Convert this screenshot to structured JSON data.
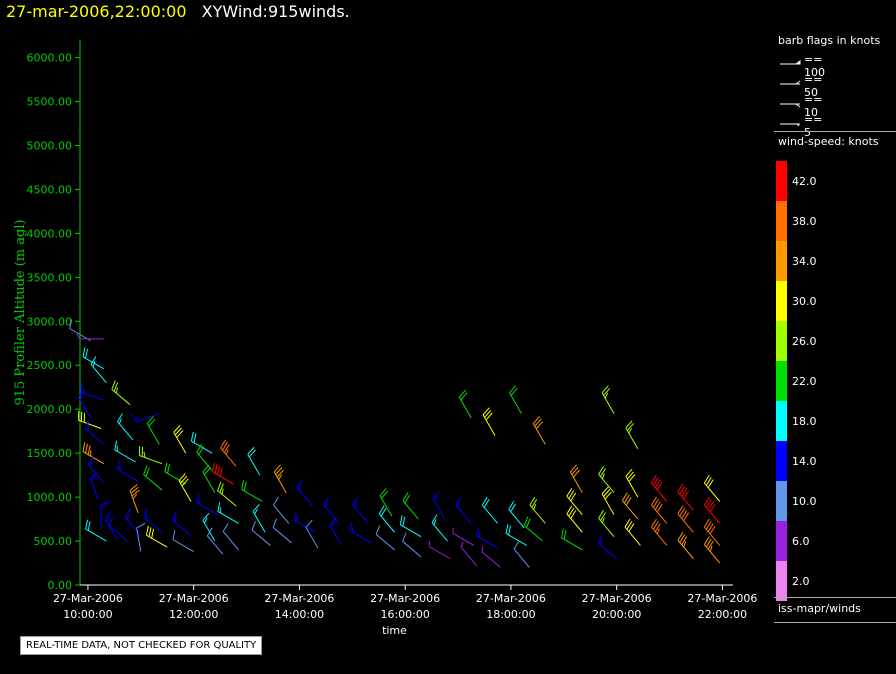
{
  "header": {
    "date": "27-mar-2006,22:00:00",
    "title": "XYWind:915winds."
  },
  "chart_data": {
    "type": "scatter",
    "ylabel": "915 Profiler Altitude (m agl)",
    "xlabel": "time",
    "ylim": [
      0,
      6200
    ],
    "xlim_hours": [
      9.85,
      22.2
    ],
    "y_ticks": [
      "0.00",
      "500.00",
      "1000.00",
      "1500.00",
      "2000.00",
      "2500.00",
      "3000.00",
      "3500.00",
      "4000.00",
      "4500.00",
      "5000.00",
      "5500.00",
      "6000.00"
    ],
    "x_ticks": [
      {
        "date": "27-Mar-2006",
        "time": "10:00:00"
      },
      {
        "date": "27-Mar-2006",
        "time": "12:00:00"
      },
      {
        "date": "27-Mar-2006",
        "time": "14:00:00"
      },
      {
        "date": "27-Mar-2006",
        "time": "16:00:00"
      },
      {
        "date": "27-Mar-2006",
        "time": "18:00:00"
      },
      {
        "date": "27-Mar-2006",
        "time": "20:00:00"
      },
      {
        "date": "27-Mar-2006",
        "time": "22:00:00"
      }
    ],
    "barbs": [
      {
        "t": 10.05,
        "alt": 2780,
        "dir": 300,
        "spd": 8
      },
      {
        "t": 10.3,
        "alt": 2800,
        "dir": 270,
        "spd": 6
      },
      {
        "t": 10.3,
        "alt": 2460,
        "dir": 300,
        "spd": 18
      },
      {
        "t": 10.35,
        "alt": 2300,
        "dir": 320,
        "spd": 16
      },
      {
        "t": 10.3,
        "alt": 2100,
        "dir": 290,
        "spd": 15
      },
      {
        "t": 10.05,
        "alt": 1900,
        "dir": 330,
        "spd": 15
      },
      {
        "t": 10.25,
        "alt": 1780,
        "dir": 290,
        "spd": 30
      },
      {
        "t": 10.3,
        "alt": 1600,
        "dir": 310,
        "spd": 14
      },
      {
        "t": 10.3,
        "alt": 1380,
        "dir": 300,
        "spd": 34
      },
      {
        "t": 10.3,
        "alt": 1160,
        "dir": 320,
        "spd": 14
      },
      {
        "t": 10.2,
        "alt": 960,
        "dir": 340,
        "spd": 14
      },
      {
        "t": 10.25,
        "alt": 640,
        "dir": 0,
        "spd": 15
      },
      {
        "t": 10.35,
        "alt": 500,
        "dir": 300,
        "spd": 18
      },
      {
        "t": 10.55,
        "alt": 520,
        "dir": 330,
        "spd": 15
      },
      {
        "t": 10.75,
        "alt": 500,
        "dir": 310,
        "spd": 12
      },
      {
        "t": 10.8,
        "alt": 2050,
        "dir": 310,
        "spd": 27
      },
      {
        "t": 10.85,
        "alt": 1650,
        "dir": 320,
        "spd": 16
      },
      {
        "t": 10.9,
        "alt": 1400,
        "dir": 300,
        "spd": 16
      },
      {
        "t": 10.95,
        "alt": 1180,
        "dir": 300,
        "spd": 14
      },
      {
        "t": 10.95,
        "alt": 820,
        "dir": 340,
        "spd": 34
      },
      {
        "t": 11.0,
        "alt": 560,
        "dir": 320,
        "spd": 14
      },
      {
        "t": 11.0,
        "alt": 380,
        "dir": 350,
        "spd": 8
      },
      {
        "t": 11.35,
        "alt": 1950,
        "dir": 250,
        "spd": 14
      },
      {
        "t": 11.35,
        "alt": 1600,
        "dir": 330,
        "spd": 20
      },
      {
        "t": 11.4,
        "alt": 1380,
        "dir": 290,
        "spd": 26
      },
      {
        "t": 11.4,
        "alt": 1080,
        "dir": 310,
        "spd": 20
      },
      {
        "t": 11.4,
        "alt": 600,
        "dir": 310,
        "spd": 14
      },
      {
        "t": 11.5,
        "alt": 430,
        "dir": 300,
        "spd": 30
      },
      {
        "t": 11.85,
        "alt": 1500,
        "dir": 330,
        "spd": 30
      },
      {
        "t": 11.85,
        "alt": 1150,
        "dir": 300,
        "spd": 22
      },
      {
        "t": 11.95,
        "alt": 950,
        "dir": 330,
        "spd": 30
      },
      {
        "t": 11.95,
        "alt": 560,
        "dir": 310,
        "spd": 14
      },
      {
        "t": 12.0,
        "alt": 380,
        "dir": 300,
        "spd": 8
      },
      {
        "t": 12.35,
        "alt": 1500,
        "dir": 300,
        "spd": 18
      },
      {
        "t": 12.35,
        "alt": 1300,
        "dir": 320,
        "spd": 20
      },
      {
        "t": 12.4,
        "alt": 1050,
        "dir": 330,
        "spd": 22
      },
      {
        "t": 12.45,
        "alt": 800,
        "dir": 300,
        "spd": 14
      },
      {
        "t": 12.4,
        "alt": 500,
        "dir": 330,
        "spd": 16
      },
      {
        "t": 12.55,
        "alt": 350,
        "dir": 320,
        "spd": 8
      },
      {
        "t": 12.8,
        "alt": 1350,
        "dir": 320,
        "spd": 36
      },
      {
        "t": 12.75,
        "alt": 1150,
        "dir": 300,
        "spd": 42
      },
      {
        "t": 12.8,
        "alt": 900,
        "dir": 310,
        "spd": 26
      },
      {
        "t": 12.85,
        "alt": 700,
        "dir": 300,
        "spd": 16
      },
      {
        "t": 12.85,
        "alt": 400,
        "dir": 320,
        "spd": 8
      },
      {
        "t": 13.25,
        "alt": 1250,
        "dir": 330,
        "spd": 18
      },
      {
        "t": 13.3,
        "alt": 950,
        "dir": 300,
        "spd": 22
      },
      {
        "t": 13.35,
        "alt": 600,
        "dir": 330,
        "spd": 16
      },
      {
        "t": 13.45,
        "alt": 450,
        "dir": 310,
        "spd": 8
      },
      {
        "t": 13.75,
        "alt": 1050,
        "dir": 330,
        "spd": 34
      },
      {
        "t": 13.8,
        "alt": 700,
        "dir": 320,
        "spd": 8
      },
      {
        "t": 13.85,
        "alt": 480,
        "dir": 310,
        "spd": 8
      },
      {
        "t": 14.25,
        "alt": 900,
        "dir": 320,
        "spd": 14
      },
      {
        "t": 14.3,
        "alt": 600,
        "dir": 300,
        "spd": 14
      },
      {
        "t": 14.35,
        "alt": 420,
        "dir": 330,
        "spd": 8
      },
      {
        "t": 14.75,
        "alt": 700,
        "dir": 320,
        "spd": 14
      },
      {
        "t": 14.8,
        "alt": 450,
        "dir": 330,
        "spd": 14
      },
      {
        "t": 15.3,
        "alt": 700,
        "dir": 320,
        "spd": 14
      },
      {
        "t": 15.35,
        "alt": 480,
        "dir": 300,
        "spd": 14
      },
      {
        "t": 15.75,
        "alt": 780,
        "dir": 330,
        "spd": 20
      },
      {
        "t": 15.8,
        "alt": 600,
        "dir": 320,
        "spd": 18
      },
      {
        "t": 15.8,
        "alt": 400,
        "dir": 310,
        "spd": 8
      },
      {
        "t": 16.25,
        "alt": 750,
        "dir": 320,
        "spd": 22
      },
      {
        "t": 16.3,
        "alt": 550,
        "dir": 300,
        "spd": 18
      },
      {
        "t": 16.3,
        "alt": 320,
        "dir": 310,
        "spd": 8
      },
      {
        "t": 16.75,
        "alt": 750,
        "dir": 330,
        "spd": 14
      },
      {
        "t": 16.8,
        "alt": 500,
        "dir": 320,
        "spd": 16
      },
      {
        "t": 16.85,
        "alt": 300,
        "dir": 300,
        "spd": 6
      },
      {
        "t": 17.25,
        "alt": 1900,
        "dir": 330,
        "spd": 22
      },
      {
        "t": 17.25,
        "alt": 700,
        "dir": 320,
        "spd": 14
      },
      {
        "t": 17.3,
        "alt": 450,
        "dir": 300,
        "spd": 6
      },
      {
        "t": 17.35,
        "alt": 220,
        "dir": 320,
        "spd": 6
      },
      {
        "t": 17.7,
        "alt": 1700,
        "dir": 330,
        "spd": 30
      },
      {
        "t": 17.75,
        "alt": 700,
        "dir": 320,
        "spd": 18
      },
      {
        "t": 17.75,
        "alt": 420,
        "dir": 300,
        "spd": 14
      },
      {
        "t": 17.8,
        "alt": 200,
        "dir": 310,
        "spd": 6
      },
      {
        "t": 18.2,
        "alt": 1950,
        "dir": 330,
        "spd": 22
      },
      {
        "t": 18.25,
        "alt": 650,
        "dir": 320,
        "spd": 18
      },
      {
        "t": 18.3,
        "alt": 450,
        "dir": 300,
        "spd": 18
      },
      {
        "t": 18.35,
        "alt": 200,
        "dir": 320,
        "spd": 8
      },
      {
        "t": 18.65,
        "alt": 1600,
        "dir": 330,
        "spd": 32
      },
      {
        "t": 18.65,
        "alt": 700,
        "dir": 320,
        "spd": 24
      },
      {
        "t": 18.6,
        "alt": 500,
        "dir": 310,
        "spd": 20
      },
      {
        "t": 19.35,
        "alt": 1050,
        "dir": 330,
        "spd": 32
      },
      {
        "t": 19.35,
        "alt": 800,
        "dir": 320,
        "spd": 30
      },
      {
        "t": 19.35,
        "alt": 600,
        "dir": 320,
        "spd": 28
      },
      {
        "t": 19.35,
        "alt": 400,
        "dir": 300,
        "spd": 22
      },
      {
        "t": 19.95,
        "alt": 1950,
        "dir": 330,
        "spd": 26
      },
      {
        "t": 19.95,
        "alt": 1050,
        "dir": 320,
        "spd": 24
      },
      {
        "t": 19.95,
        "alt": 800,
        "dir": 330,
        "spd": 28
      },
      {
        "t": 19.95,
        "alt": 550,
        "dir": 320,
        "spd": 26
      },
      {
        "t": 20.0,
        "alt": 300,
        "dir": 310,
        "spd": 14
      },
      {
        "t": 20.4,
        "alt": 1550,
        "dir": 330,
        "spd": 26
      },
      {
        "t": 20.4,
        "alt": 1000,
        "dir": 330,
        "spd": 30
      },
      {
        "t": 20.4,
        "alt": 750,
        "dir": 320,
        "spd": 32
      },
      {
        "t": 20.45,
        "alt": 450,
        "dir": 320,
        "spd": 30
      },
      {
        "t": 20.95,
        "alt": 950,
        "dir": 320,
        "spd": 40
      },
      {
        "t": 20.95,
        "alt": 700,
        "dir": 320,
        "spd": 38
      },
      {
        "t": 20.95,
        "alt": 450,
        "dir": 320,
        "spd": 36
      },
      {
        "t": 21.45,
        "alt": 850,
        "dir": 320,
        "spd": 40
      },
      {
        "t": 21.45,
        "alt": 600,
        "dir": 320,
        "spd": 38
      },
      {
        "t": 21.45,
        "alt": 300,
        "dir": 320,
        "spd": 34
      },
      {
        "t": 21.95,
        "alt": 950,
        "dir": 320,
        "spd": 30
      },
      {
        "t": 21.95,
        "alt": 700,
        "dir": 320,
        "spd": 40
      },
      {
        "t": 21.95,
        "alt": 450,
        "dir": 320,
        "spd": 38
      },
      {
        "t": 21.95,
        "alt": 250,
        "dir": 320,
        "spd": 34
      }
    ]
  },
  "legend": {
    "barb_title": "barb flags in knots",
    "barb_items": [
      {
        "label": "== 100",
        "value": 100
      },
      {
        "label": "== 50",
        "value": 50
      },
      {
        "label": "== 10",
        "value": 10
      },
      {
        "label": "== 5",
        "value": 5
      }
    ],
    "speed_title": "wind-speed: knots",
    "speed_scale": [
      {
        "label": "42.0",
        "color": "#ff0000"
      },
      {
        "label": "38.0",
        "color": "#ff7000"
      },
      {
        "label": "34.0",
        "color": "#ff9a00"
      },
      {
        "label": "30.0",
        "color": "#ffff00"
      },
      {
        "label": "26.0",
        "color": "#a0ff00"
      },
      {
        "label": "22.0",
        "color": "#00e000"
      },
      {
        "label": "18.0",
        "color": "#00ffff"
      },
      {
        "label": "14.0",
        "color": "#0000ff"
      },
      {
        "label": "10.0",
        "color": "#6495ed"
      },
      {
        "label": "6.0",
        "color": "#9a20e0"
      },
      {
        "label": "2.0",
        "color": "#ee82ee"
      }
    ],
    "source": "iss-mapr/winds"
  },
  "footer": {
    "disclaimer": "REAL-TIME DATA, NOT CHECKED FOR QUALITY"
  },
  "colors": {
    "axis": "#00cc00",
    "xaxis": "#ffffff"
  }
}
